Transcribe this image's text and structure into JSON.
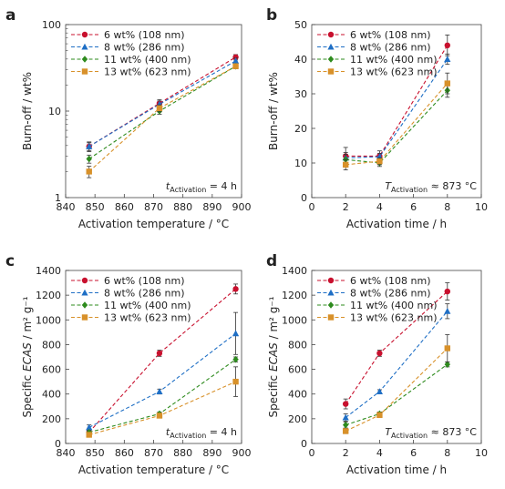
{
  "colors": {
    "6 wt%": "#c8102e",
    "8 wt%": "#1f6fc5",
    "11 wt%": "#2e8b1e",
    "13 wt%": "#d8912a"
  },
  "legend_labels": [
    "6 wt% (108 nm)",
    "8 wt% (286 nm)",
    "11 wt% (400 nm)",
    "13 wt% (623 nm)"
  ],
  "chart_data": [
    {
      "panel": "a",
      "type": "line",
      "xlabel": "Activation temperature / °C",
      "ylabel": "Burn-off / wt%",
      "xlim": [
        840,
        900
      ],
      "ylim": [
        1,
        100
      ],
      "yscale": "log",
      "xticks": [
        "840",
        "850",
        "860",
        "870",
        "880",
        "890",
        "900"
      ],
      "yticks": [
        "1",
        "10",
        "100"
      ],
      "annotation": {
        "italic": "t",
        "sub": "Activation",
        "rest": " = 4 h"
      },
      "legend": "top-left",
      "series": [
        {
          "name": "6 wt% (108 nm)",
          "marker": "circle",
          "x": [
            848,
            872,
            898
          ],
          "y": [
            3.9,
            12.3,
            42
          ],
          "err": [
            0.5,
            1.3,
            3
          ]
        },
        {
          "name": "8 wt% (286 nm)",
          "marker": "triangle",
          "x": [
            848,
            872,
            898
          ],
          "y": [
            3.9,
            12.0,
            38
          ],
          "err": [
            0.4,
            1.1,
            3
          ]
        },
        {
          "name": "11 wt% (400 nm)",
          "marker": "diamond",
          "x": [
            848,
            872,
            898
          ],
          "y": [
            2.8,
            10.0,
            33
          ],
          "err": [
            0.3,
            0.8,
            2
          ]
        },
        {
          "name": "13 wt% (623 nm)",
          "marker": "square",
          "x": [
            848,
            872,
            898
          ],
          "y": [
            2.0,
            10.8,
            33
          ],
          "err": [
            0.3,
            1.0,
            2
          ]
        }
      ]
    },
    {
      "panel": "b",
      "type": "line",
      "xlabel": "Activation time / h",
      "ylabel": "Burn-off / wt%",
      "xlim": [
        0,
        10
      ],
      "ylim": [
        0,
        50
      ],
      "yscale": "linear",
      "xticks": [
        "0",
        "2",
        "4",
        "6",
        "8",
        "10"
      ],
      "yticks": [
        "0",
        "10",
        "20",
        "30",
        "40",
        "50"
      ],
      "annotation": {
        "italic": "T",
        "sub": "Activation",
        "rest": " ≈ 873 °C"
      },
      "legend": "top-left",
      "series": [
        {
          "name": "6 wt% (108 nm)",
          "marker": "circle",
          "x": [
            2,
            4,
            8
          ],
          "y": [
            12.0,
            12.0,
            44.0
          ],
          "err": [
            2.5,
            1.5,
            3.0
          ]
        },
        {
          "name": "8 wt% (286 nm)",
          "marker": "triangle",
          "x": [
            2,
            4,
            8
          ],
          "y": [
            11.5,
            11.8,
            40.0
          ],
          "err": [
            1.5,
            1.0,
            1.5
          ]
        },
        {
          "name": "11 wt% (400 nm)",
          "marker": "diamond",
          "x": [
            2,
            4,
            8
          ],
          "y": [
            11.0,
            10.0,
            31.0
          ],
          "err": [
            1.5,
            1.0,
            2.0
          ]
        },
        {
          "name": "13 wt% (623 nm)",
          "marker": "square",
          "x": [
            2,
            4,
            8
          ],
          "y": [
            9.5,
            10.5,
            33.0
          ],
          "err": [
            1.5,
            1.0,
            3.0
          ]
        }
      ]
    },
    {
      "panel": "c",
      "type": "line",
      "xlabel": "Activation temperature / °C",
      "ylabel": "Specific ECAS / m² g⁻¹",
      "xlim": [
        840,
        900
      ],
      "ylim": [
        0,
        1400
      ],
      "yscale": "linear",
      "xticks": [
        "840",
        "850",
        "860",
        "870",
        "880",
        "890",
        "900"
      ],
      "yticks": [
        "0",
        "200",
        "400",
        "600",
        "800",
        "1000",
        "1200",
        "1400"
      ],
      "annotation": {
        "italic": "t",
        "sub": "Activation",
        "rest": " = 4 h"
      },
      "legend": "top-left",
      "series": [
        {
          "name": "6 wt% (108 nm)",
          "marker": "circle",
          "x": [
            848,
            872,
            898
          ],
          "y": [
            90,
            730,
            1250
          ],
          "err": [
            15,
            25,
            40
          ]
        },
        {
          "name": "8 wt% (286 nm)",
          "marker": "triangle",
          "x": [
            848,
            872,
            898
          ],
          "y": [
            130,
            420,
            890
          ],
          "err": [
            20,
            20,
            170
          ]
        },
        {
          "name": "11 wt% (400 nm)",
          "marker": "diamond",
          "x": [
            848,
            872,
            898
          ],
          "y": [
            90,
            240,
            680
          ],
          "err": [
            15,
            15,
            20
          ]
        },
        {
          "name": "13 wt% (623 nm)",
          "marker": "square",
          "x": [
            848,
            872,
            898
          ],
          "y": [
            70,
            225,
            500
          ],
          "err": [
            15,
            15,
            120
          ]
        }
      ]
    },
    {
      "panel": "d",
      "type": "line",
      "xlabel": "Activation time / h",
      "ylabel": "Specific ECAS / m² g⁻¹",
      "xlim": [
        0,
        10
      ],
      "ylim": [
        0,
        1400
      ],
      "yscale": "linear",
      "xticks": [
        "0",
        "2",
        "4",
        "6",
        "8",
        "10"
      ],
      "yticks": [
        "0",
        "200",
        "400",
        "600",
        "800",
        "1000",
        "1200",
        "1400"
      ],
      "annotation": {
        "italic": "T",
        "sub": "Activation",
        "rest": " ≈ 873 °C"
      },
      "legend": "top-left",
      "series": [
        {
          "name": "6 wt% (108 nm)",
          "marker": "circle",
          "x": [
            2,
            4,
            8
          ],
          "y": [
            320,
            730,
            1230
          ],
          "err": [
            40,
            25,
            70
          ]
        },
        {
          "name": "8 wt% (286 nm)",
          "marker": "triangle",
          "x": [
            2,
            4,
            8
          ],
          "y": [
            210,
            420,
            1070
          ],
          "err": [
            30,
            15,
            60
          ]
        },
        {
          "name": "11 wt% (400 nm)",
          "marker": "diamond",
          "x": [
            2,
            4,
            8
          ],
          "y": [
            150,
            240,
            640
          ],
          "err": [
            25,
            15,
            20
          ]
        },
        {
          "name": "13 wt% (623 nm)",
          "marker": "square",
          "x": [
            2,
            4,
            8
          ],
          "y": [
            100,
            230,
            770
          ],
          "err": [
            20,
            15,
            110
          ]
        }
      ]
    }
  ]
}
